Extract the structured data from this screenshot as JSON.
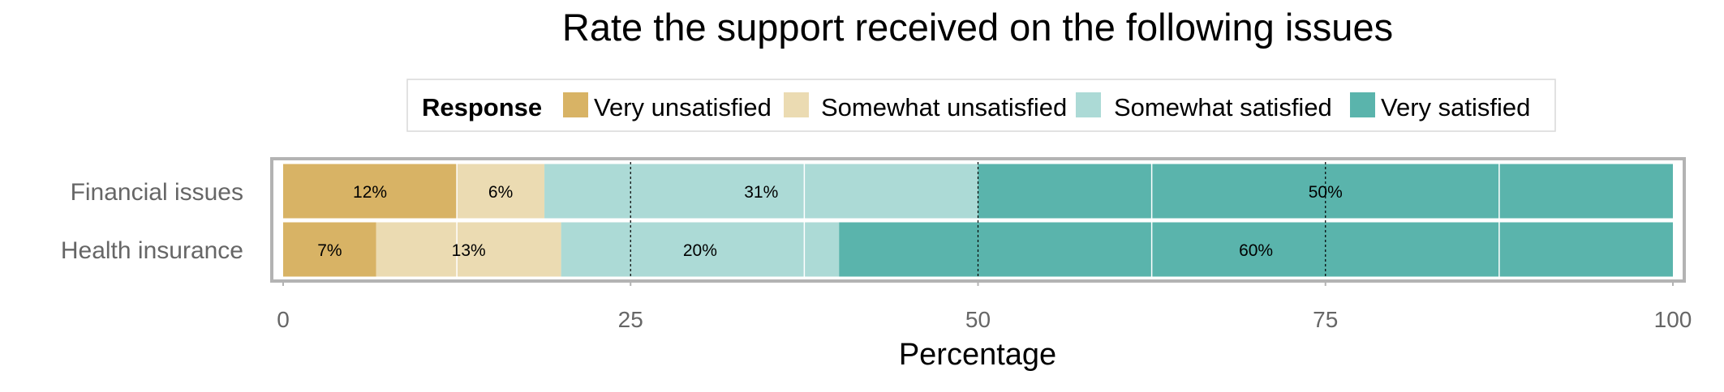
{
  "chart_data": {
    "type": "bar",
    "orientation": "horizontal",
    "stacked": true,
    "title": "Rate the support received on the following issues",
    "xlabel": "Percentage",
    "ylabel": "",
    "xlim": [
      0,
      100
    ],
    "x_ticks": [
      "0",
      "25",
      "50",
      "75",
      "100"
    ],
    "grid": true,
    "legend": {
      "title": "Response",
      "position": "top",
      "items": [
        "Very unsatisfied",
        "Somewhat unsatisfied",
        "Somewhat satisfied",
        "Very satisfied"
      ]
    },
    "categories": [
      "Financial issues",
      "Health insurance"
    ],
    "series": [
      {
        "name": "Very unsatisfied",
        "color": "#d8b365",
        "values": [
          12.5,
          6.7
        ],
        "labels": [
          "12%",
          "7%"
        ]
      },
      {
        "name": "Somewhat unsatisfied",
        "color": "#ebdbb2",
        "values": [
          6.3,
          13.3
        ],
        "labels": [
          "6%",
          "13%"
        ]
      },
      {
        "name": "Somewhat satisfied",
        "color": "#acdad6",
        "values": [
          31.2,
          20.0
        ],
        "labels": [
          "31%",
          "20%"
        ]
      },
      {
        "name": "Very satisfied",
        "color": "#5ab4ac",
        "values": [
          50.0,
          60.0
        ],
        "labels": [
          "50%",
          "60%"
        ]
      }
    ]
  }
}
